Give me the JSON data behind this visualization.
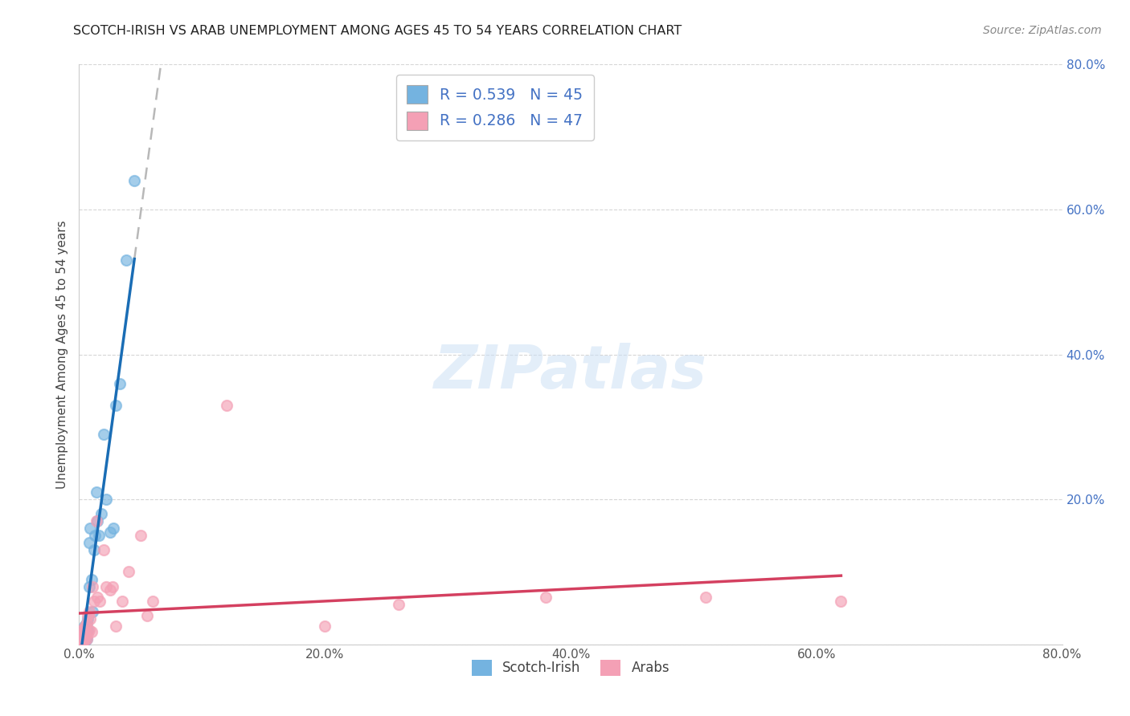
{
  "title": "SCOTCH-IRISH VS ARAB UNEMPLOYMENT AMONG AGES 45 TO 54 YEARS CORRELATION CHART",
  "source": "Source: ZipAtlas.com",
  "ylabel": "Unemployment Among Ages 45 to 54 years",
  "xlim": [
    0.0,
    0.8
  ],
  "ylim": [
    0.0,
    0.8
  ],
  "xtick_vals": [
    0.0,
    0.2,
    0.4,
    0.6,
    0.8
  ],
  "xtick_labels": [
    "0.0%",
    "20.0%",
    "40.0%",
    "60.0%",
    "80.0%"
  ],
  "ytick_vals": [
    0.0,
    0.2,
    0.4,
    0.6,
    0.8
  ],
  "ytick_right_labels": [
    "",
    "20.0%",
    "40.0%",
    "60.0%",
    "80.0%"
  ],
  "scotch_irish_R": 0.539,
  "scotch_irish_N": 45,
  "arab_R": 0.286,
  "arab_N": 47,
  "si_color": "#74b3e0",
  "arab_color": "#f4a0b5",
  "si_line_color": "#1a6db5",
  "arab_line_color": "#d44060",
  "ext_line_color": "#b8b8b8",
  "bg_color": "#ffffff",
  "watermark": "ZIPatlas",
  "legend_color": "#4472c4",
  "si_x": [
    0.001,
    0.001,
    0.001,
    0.001,
    0.001,
    0.002,
    0.002,
    0.002,
    0.002,
    0.002,
    0.003,
    0.003,
    0.003,
    0.003,
    0.003,
    0.004,
    0.004,
    0.004,
    0.005,
    0.005,
    0.005,
    0.006,
    0.006,
    0.006,
    0.007,
    0.007,
    0.008,
    0.008,
    0.009,
    0.01,
    0.011,
    0.012,
    0.013,
    0.014,
    0.015,
    0.016,
    0.018,
    0.02,
    0.022,
    0.025,
    0.028,
    0.03,
    0.033,
    0.038,
    0.045
  ],
  "si_y": [
    0.005,
    0.008,
    0.003,
    0.007,
    0.004,
    0.006,
    0.01,
    0.004,
    0.015,
    0.008,
    0.005,
    0.012,
    0.018,
    0.008,
    0.003,
    0.015,
    0.025,
    0.008,
    0.012,
    0.02,
    0.005,
    0.018,
    0.03,
    0.008,
    0.02,
    0.035,
    0.14,
    0.08,
    0.16,
    0.09,
    0.045,
    0.13,
    0.15,
    0.21,
    0.17,
    0.15,
    0.18,
    0.29,
    0.2,
    0.155,
    0.16,
    0.33,
    0.36,
    0.53,
    0.64
  ],
  "arab_x": [
    0.001,
    0.001,
    0.001,
    0.001,
    0.002,
    0.002,
    0.002,
    0.002,
    0.003,
    0.003,
    0.003,
    0.003,
    0.003,
    0.004,
    0.004,
    0.004,
    0.005,
    0.005,
    0.006,
    0.006,
    0.007,
    0.007,
    0.008,
    0.008,
    0.009,
    0.01,
    0.011,
    0.012,
    0.014,
    0.015,
    0.017,
    0.02,
    0.022,
    0.025,
    0.027,
    0.03,
    0.035,
    0.04,
    0.05,
    0.055,
    0.06,
    0.12,
    0.2,
    0.26,
    0.38,
    0.51,
    0.62
  ],
  "arab_y": [
    0.003,
    0.006,
    0.01,
    0.014,
    0.003,
    0.006,
    0.012,
    0.02,
    0.005,
    0.008,
    0.012,
    0.02,
    0.004,
    0.01,
    0.016,
    0.005,
    0.012,
    0.025,
    0.008,
    0.03,
    0.015,
    0.04,
    0.02,
    0.045,
    0.035,
    0.018,
    0.08,
    0.06,
    0.17,
    0.065,
    0.06,
    0.13,
    0.08,
    0.075,
    0.08,
    0.025,
    0.06,
    0.1,
    0.15,
    0.04,
    0.06,
    0.33,
    0.025,
    0.055,
    0.065,
    0.065,
    0.06
  ]
}
